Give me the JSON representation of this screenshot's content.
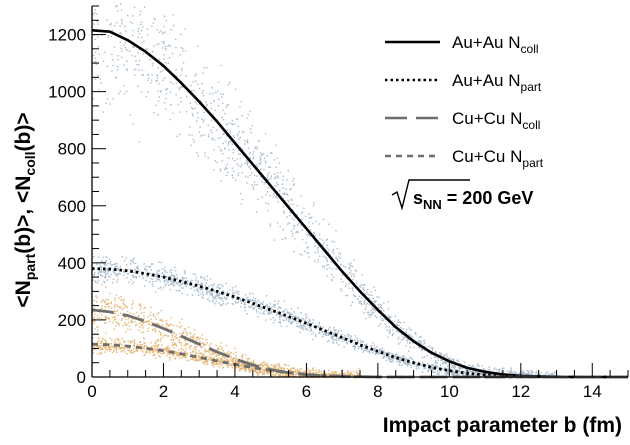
{
  "chart_data": {
    "type": "line",
    "xlabel": "Impact parameter b (fm)",
    "ylabel_parts": [
      "<N",
      "part",
      "(b)>,  <N",
      "coll",
      "(b)>"
    ],
    "xlim": [
      0,
      15
    ],
    "ylim": [
      0,
      1300
    ],
    "xticks": [
      0,
      2,
      4,
      6,
      8,
      10,
      12,
      14
    ],
    "yticks": [
      0,
      200,
      400,
      600,
      800,
      1000,
      1200
    ],
    "grid": false,
    "legend_position": "top-right",
    "annotation": {
      "sqrt": "s",
      "sub": "NN",
      "value": " = 200 GeV"
    },
    "x": [
      0,
      0.5,
      1,
      1.5,
      2,
      2.5,
      3,
      3.5,
      4,
      4.5,
      5,
      5.5,
      6,
      6.5,
      7,
      7.5,
      8,
      8.5,
      9,
      9.5,
      10,
      10.5,
      11,
      11.5,
      12,
      12.5,
      13,
      13.5,
      14,
      14.5,
      15
    ],
    "series": [
      {
        "name": "Au+Au N",
        "sub": "coll",
        "color": "#000000",
        "style": "solid",
        "values": [
          1215,
          1210,
          1180,
          1140,
          1090,
          1030,
          965,
          895,
          820,
          745,
          670,
          595,
          520,
          445,
          370,
          300,
          235,
          175,
          125,
          85,
          55,
          32,
          18,
          9,
          4,
          2,
          1,
          0,
          0,
          0,
          0
        ]
      },
      {
        "name": "Au+Au N",
        "sub": "part",
        "color": "#000000",
        "style": "dotted",
        "values": [
          380,
          378,
          372,
          362,
          350,
          335,
          318,
          300,
          280,
          258,
          235,
          212,
          188,
          163,
          138,
          113,
          90,
          68,
          50,
          34,
          22,
          13,
          7,
          4,
          2,
          1,
          0,
          0,
          0,
          0,
          0
        ]
      },
      {
        "name": "Cu+Cu N",
        "sub": "coll",
        "color": "#6e6e6e",
        "style": "long-dash",
        "values": [
          235,
          228,
          215,
          195,
          170,
          143,
          115,
          88,
          63,
          42,
          26,
          15,
          8,
          4,
          2,
          1,
          0,
          0,
          0,
          0,
          0,
          0,
          0,
          0,
          0,
          0,
          0,
          0,
          0,
          0,
          0
        ]
      },
      {
        "name": "Cu+Cu N",
        "sub": "part",
        "color": "#6e6e6e",
        "style": "short-dash",
        "values": [
          115,
          113,
          108,
          101,
          92,
          81,
          69,
          56,
          44,
          33,
          23,
          15,
          9,
          5,
          3,
          1,
          0,
          0,
          0,
          0,
          0,
          0,
          0,
          0,
          0,
          0,
          0,
          0,
          0,
          0,
          0
        ]
      }
    ],
    "scatter_bands": [
      {
        "color": "#a9bccd",
        "follows": [
          "Au+Au N",
          "coll"
        ],
        "spread": 0.18
      },
      {
        "color": "#a9bccd",
        "follows": [
          "Au+Au N",
          "part"
        ],
        "spread": 0.1
      },
      {
        "color": "#e7b878",
        "follows": [
          "Cu+Cu N",
          "coll"
        ],
        "spread": 0.25
      },
      {
        "color": "#e7b878",
        "follows": [
          "Cu+Cu N",
          "part"
        ],
        "spread": 0.14
      }
    ]
  }
}
